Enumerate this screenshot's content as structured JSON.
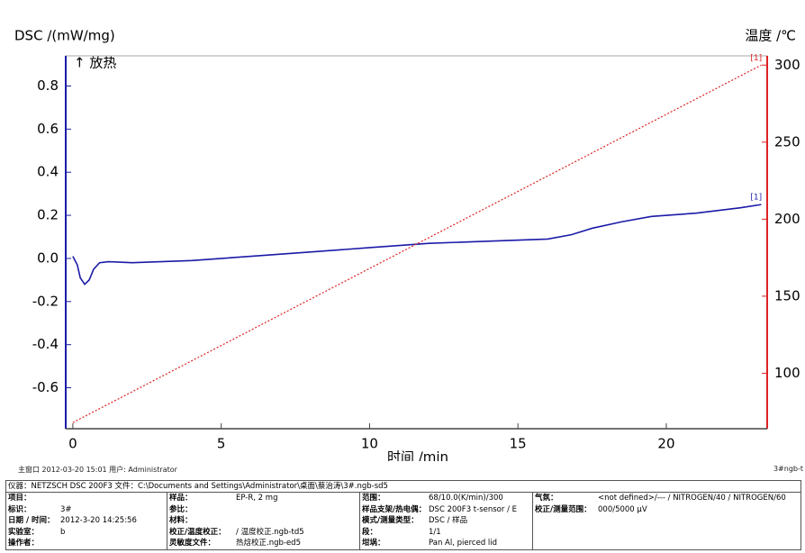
{
  "chart_data": {
    "type": "line",
    "y_label": "DSC /(mW/mg)",
    "y2_label": "温度 /℃",
    "x_label": "时间 /min",
    "annotation": "↑ 放热",
    "xlim": [
      -0.24,
      23.4
    ],
    "xticks": [
      0,
      5,
      10,
      15,
      20
    ],
    "ylim": [
      -0.79,
      0.94
    ],
    "yticks": [
      {
        "value": -0.6,
        "label": "-0.6"
      },
      {
        "value": -0.4,
        "label": "-0.4"
      },
      {
        "value": -0.2,
        "label": "-0.2"
      },
      {
        "value": 0,
        "label": "0.0"
      },
      {
        "value": 0.2,
        "label": "0.2"
      },
      {
        "value": 0.4,
        "label": "0.4"
      },
      {
        "value": 0.6,
        "label": "0.6"
      },
      {
        "value": 0.8,
        "label": "0.8"
      }
    ],
    "y2lim": [
      64,
      306
    ],
    "y2ticks": [
      100,
      150,
      200,
      250,
      300
    ],
    "series": [
      {
        "name": "[1]",
        "color": "#1a1aa8",
        "axis": "y",
        "style": "solid",
        "x": [
          0,
          0.15,
          0.25,
          0.4,
          0.55,
          0.7,
          0.9,
          1.2,
          2,
          4,
          6,
          8,
          10,
          12,
          14,
          16,
          16.8,
          17.5,
          18.5,
          19.5,
          21,
          22.5,
          23.2
        ],
        "values": [
          0.01,
          -0.03,
          -0.09,
          -0.12,
          -0.1,
          -0.05,
          -0.02,
          -0.015,
          -0.02,
          -0.01,
          0.01,
          0.03,
          0.05,
          0.07,
          0.08,
          0.09,
          0.11,
          0.14,
          0.17,
          0.195,
          0.21,
          0.235,
          0.25
        ]
      },
      {
        "name": "[1]",
        "color": "#dd2222",
        "axis": "y2",
        "style": "dotted",
        "x": [
          0,
          23.2
        ],
        "values": [
          68,
          300
        ]
      }
    ]
  },
  "status_bar": {
    "left": "主窗口   2012-03-20 15:01   用户: Administrator",
    "right": "3#ngb-t"
  },
  "info": {
    "header": "仪器：NETZSCH DSC 200F3   文件：C:\\Documents and Settings\\Administrator\\桌面\\蔡治涛\\3#.ngb-sd5",
    "columns": [
      [
        {
          "label": "项目：",
          "value": ""
        },
        {
          "label": "标识：",
          "value": "3#"
        },
        {
          "label": "日期 / 时间：",
          "value": "2012-3-20 14:25:56"
        },
        {
          "label": "实验室：",
          "value": "b"
        },
        {
          "label": "操作者：",
          "value": ""
        }
      ],
      [
        {
          "label": "样品：",
          "value": "EP-R, 2 mg"
        },
        {
          "label": "参比：",
          "value": ""
        },
        {
          "label": "材料：",
          "value": ""
        },
        {
          "label": "校正/温度校正：",
          "value": "/ 温度校正.ngb-td5"
        },
        {
          "label": "灵敏度文件：",
          "value": "热焓校正.ngb-ed5"
        }
      ],
      [
        {
          "label": "范围：",
          "value": "68/10.0(K/min)/300"
        },
        {
          "label": "样品支架/热电偶：",
          "value": "DSC 200F3 t-sensor / E"
        },
        {
          "label": "模式/测量类型：",
          "value": "DSC / 样品"
        },
        {
          "label": "段：",
          "value": "1/1"
        },
        {
          "label": "坩埚：",
          "value": "Pan Al, pierced lid"
        }
      ],
      [
        {
          "label": "气氛：",
          "value": "<not defined>/--- / NITROGEN/40 / NITROGEN/60"
        },
        {
          "label": "校正/测量范围：",
          "value": "000/5000 μV"
        }
      ]
    ]
  }
}
